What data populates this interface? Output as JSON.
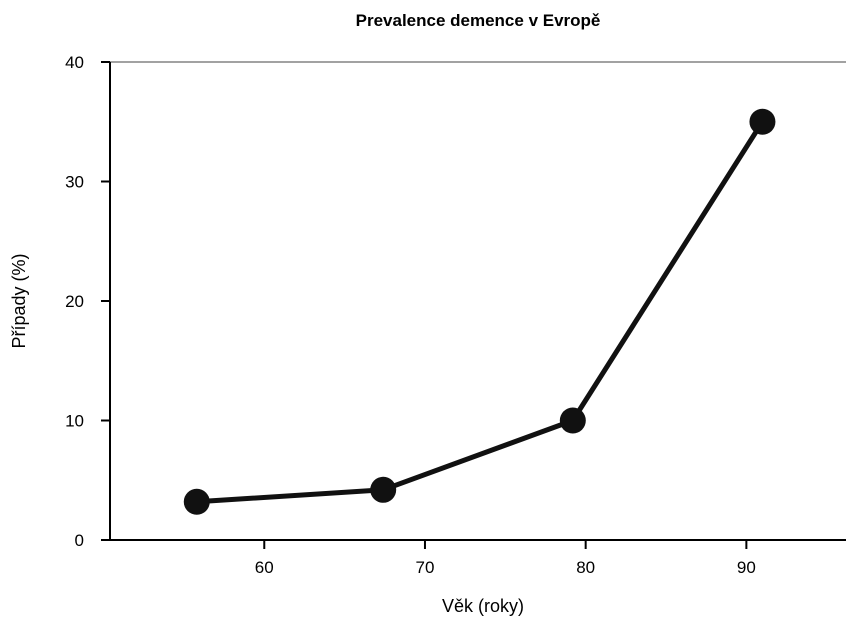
{
  "chart_data": {
    "type": "line",
    "title": "Prevalence demence v Evropě",
    "xlabel": "Věk (roky)",
    "ylabel": "Případy (%)",
    "xlim": [
      50.4,
      96.2
    ],
    "ylim": [
      0,
      40
    ],
    "xticks": [
      60,
      70,
      80,
      90
    ],
    "yticks": [
      0,
      10,
      20,
      30,
      40
    ],
    "grid": false,
    "legend": "none",
    "series": [
      {
        "x": [
          55.8,
          67.4,
          79.2,
          91.0
        ],
        "y": [
          3.2,
          4.2,
          10.0,
          35.0
        ],
        "color": "#111111"
      }
    ]
  }
}
